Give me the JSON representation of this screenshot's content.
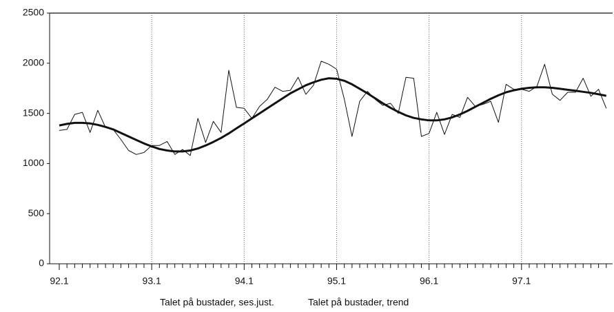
{
  "chart_data": {
    "type": "line",
    "categories": [
      "92.1",
      null,
      null,
      null,
      null,
      null,
      null,
      null,
      null,
      null,
      null,
      null,
      "93.1",
      null,
      null,
      null,
      null,
      null,
      null,
      null,
      null,
      null,
      null,
      null,
      "94.1",
      null,
      null,
      null,
      null,
      null,
      null,
      null,
      null,
      null,
      null,
      null,
      "95.1",
      null,
      null,
      null,
      null,
      null,
      null,
      null,
      null,
      null,
      null,
      null,
      "96.1",
      null,
      null,
      null,
      null,
      null,
      null,
      null,
      null,
      null,
      null,
      null,
      "97.1",
      null,
      null,
      null,
      null,
      null,
      null,
      null,
      null,
      null,
      null,
      null
    ],
    "series": [
      {
        "name": "Talet på bustader, ses.just.",
        "color": "#111111",
        "width": 1,
        "values": [
          1330,
          1340,
          1490,
          1510,
          1310,
          1530,
          1360,
          1340,
          1240,
          1130,
          1090,
          1110,
          1180,
          1180,
          1220,
          1090,
          1140,
          1080,
          1450,
          1210,
          1420,
          1310,
          1930,
          1560,
          1550,
          1450,
          1570,
          1640,
          1760,
          1720,
          1730,
          1860,
          1690,
          1780,
          2020,
          1990,
          1940,
          1640,
          1270,
          1620,
          1720,
          1640,
          1580,
          1600,
          1500,
          1860,
          1850,
          1270,
          1300,
          1510,
          1290,
          1490,
          1460,
          1660,
          1570,
          1590,
          1620,
          1410,
          1790,
          1740,
          1740,
          1720,
          1770,
          1990,
          1690,
          1630,
          1710,
          1710,
          1850,
          1670,
          1740,
          1550
        ]
      },
      {
        "name": "Talet på bustader, trend",
        "color": "#111111",
        "width": 3,
        "values": [
          1380,
          1395,
          1405,
          1405,
          1400,
          1385,
          1365,
          1340,
          1305,
          1270,
          1235,
          1200,
          1170,
          1145,
          1130,
          1120,
          1120,
          1130,
          1150,
          1180,
          1215,
          1255,
          1300,
          1350,
          1400,
          1450,
          1500,
          1550,
          1600,
          1650,
          1700,
          1740,
          1780,
          1810,
          1835,
          1850,
          1845,
          1825,
          1790,
          1745,
          1700,
          1650,
          1600,
          1555,
          1515,
          1480,
          1455,
          1440,
          1430,
          1430,
          1440,
          1460,
          1490,
          1525,
          1565,
          1605,
          1645,
          1680,
          1710,
          1730,
          1745,
          1755,
          1760,
          1760,
          1755,
          1745,
          1735,
          1725,
          1715,
          1705,
          1690,
          1675
        ]
      }
    ],
    "ylim": [
      0,
      2500
    ],
    "yticks": [
      0,
      500,
      1000,
      1500,
      2000,
      2500
    ],
    "xgrid": true
  }
}
